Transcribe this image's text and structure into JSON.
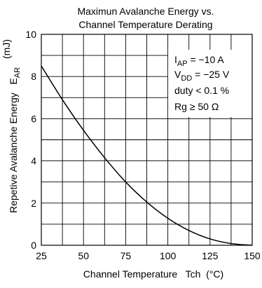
{
  "chart_data": {
    "type": "line",
    "title_line1": "Maximun Avalanche Energy vs.",
    "title_line2": "Channel Temperature Derating",
    "xlabel": "Channel Temperature   Tch  (°C)",
    "ylabel": "Repetive Avalanche Energy   E",
    "ylabel_sub": "AR",
    "yunit": "(mJ)",
    "xlim": [
      25,
      150
    ],
    "ylim": [
      0,
      10
    ],
    "x_ticks": [
      25,
      50,
      75,
      100,
      125,
      150
    ],
    "y_ticks": [
      0,
      2,
      4,
      6,
      8,
      10
    ],
    "x_grid_step": 12.5,
    "y_grid_step": 1,
    "grid": true,
    "series": [
      {
        "x": [
          25,
          37.5,
          50,
          62.5,
          75,
          87.5,
          100,
          112.5,
          125,
          137.5,
          150
        ],
        "y": [
          8.5,
          6.9,
          5.45,
          4.15,
          3.0,
          2.05,
          1.28,
          0.7,
          0.3,
          0.08,
          0.0
        ]
      }
    ],
    "annotations": {
      "iap": {
        "main": "I",
        "sub": "AP",
        "rest": " = −10 A"
      },
      "vdd": {
        "main": "V",
        "sub": "DD",
        "rest": " = −25 V"
      },
      "duty": "duty < 0.1 %",
      "rg": "Rg ≥ 50 Ω"
    }
  }
}
